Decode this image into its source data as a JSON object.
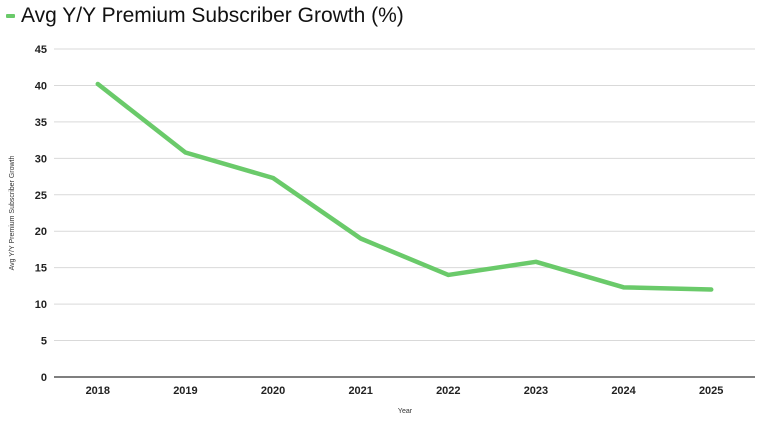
{
  "chart_data": {
    "type": "line",
    "title": "",
    "categories": [
      "2018",
      "2019",
      "2020",
      "2021",
      "2022",
      "2023",
      "2024",
      "2025"
    ],
    "series": [
      {
        "name": "Avg Y/Y Premium Subscriber Growth (%)",
        "values": [
          40.2,
          30.8,
          27.3,
          19.0,
          14.0,
          15.8,
          12.3,
          12.0
        ],
        "color": "#6aca6a"
      }
    ],
    "xlabel": "Year",
    "ylabel": "Avg Y/Y Premium Subscriber Growth",
    "ylim": [
      0,
      45
    ],
    "yticks": [
      "0",
      "5",
      "10",
      "15",
      "20",
      "25",
      "30",
      "35",
      "40",
      "45"
    ],
    "grid": true,
    "legend_position": "top-left"
  }
}
